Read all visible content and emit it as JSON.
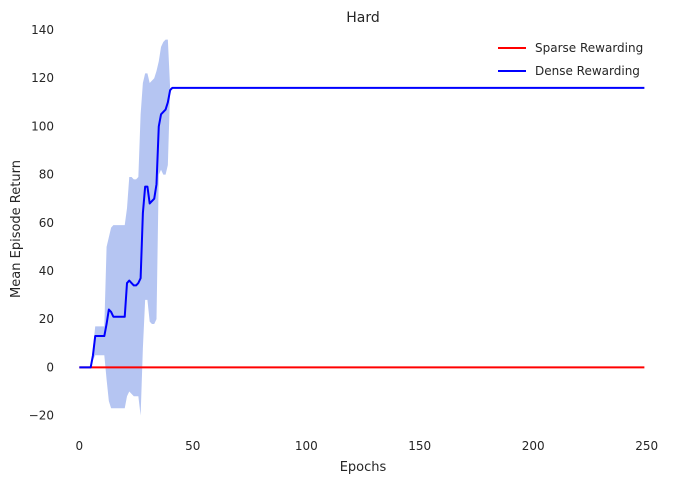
{
  "chart_data": {
    "type": "line",
    "title": "Hard",
    "xlabel": "Epochs",
    "ylabel": "Mean Episode Return",
    "xlim": [
      -5,
      255
    ],
    "ylim": [
      -26,
      140
    ],
    "xticks": [
      0,
      50,
      100,
      150,
      200,
      250
    ],
    "yticks": [
      -20,
      0,
      20,
      40,
      60,
      80,
      100,
      120,
      140
    ],
    "grid": false,
    "legend_position": "top-right",
    "series": [
      {
        "name": "Sparse Rewarding",
        "color": "#ff0000",
        "x": [
          0,
          249
        ],
        "y": [
          0,
          0
        ]
      },
      {
        "name": "Dense Rewarding",
        "color": "#0000ff",
        "band_color": "#6b8ce6",
        "x": [
          0,
          5,
          6,
          7,
          11,
          12,
          13,
          14,
          15,
          16,
          20,
          21,
          22,
          23,
          24,
          25,
          26,
          27,
          28,
          29,
          30,
          31,
          32,
          33,
          34,
          35,
          36,
          37,
          38,
          39,
          40,
          41,
          42,
          50,
          100,
          150,
          200,
          249
        ],
        "y": [
          0,
          0,
          5,
          13,
          13,
          18,
          24,
          23,
          21,
          21,
          21,
          35,
          36,
          35,
          34,
          34,
          35,
          37,
          64,
          75,
          75,
          68,
          69,
          70,
          76,
          100,
          105,
          106,
          107,
          110,
          115,
          116,
          116,
          116,
          116,
          116,
          116,
          116
        ],
        "upper": [
          0,
          0,
          8,
          17,
          17,
          50,
          54,
          58,
          59,
          59,
          59,
          66,
          79,
          79,
          78,
          78,
          79,
          105,
          118,
          122,
          122,
          118,
          119,
          120,
          123,
          127,
          133,
          135,
          136,
          136,
          116,
          116,
          116,
          116,
          116,
          116,
          116,
          116
        ],
        "lower": [
          0,
          0,
          3,
          5,
          5,
          -5,
          -14,
          -17,
          -17,
          -17,
          -17,
          -12,
          -10,
          -11,
          -12,
          -12,
          -12,
          -20,
          8,
          28,
          28,
          19,
          18,
          18,
          20,
          80,
          82,
          80,
          80,
          84,
          115,
          116,
          116,
          116,
          116,
          116,
          116,
          116
        ]
      }
    ]
  }
}
